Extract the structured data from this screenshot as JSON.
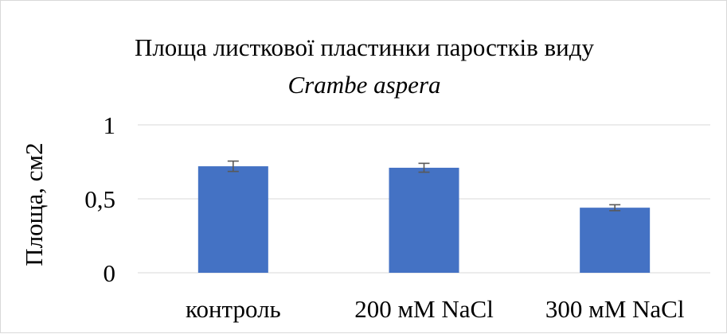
{
  "chart_data": {
    "type": "bar",
    "title": "Площа листкової пластинки паростків виду",
    "subtitle": "Crambe aspera",
    "xlabel": "",
    "ylabel": "Площа, см2",
    "categories": [
      "контроль",
      "200 мМ NaCl",
      "300 мМ NaCl"
    ],
    "values": [
      0.72,
      0.71,
      0.44
    ],
    "errors": [
      0.035,
      0.03,
      0.02
    ],
    "ylim": [
      0,
      1
    ],
    "yticks": [
      0,
      0.5,
      1
    ],
    "ytick_labels": [
      "0",
      "0,5",
      "1"
    ],
    "grid": true,
    "legend": "none",
    "bar_color": "#4472c4",
    "error_color": "#595959",
    "grid_color": "#d9d9d9"
  }
}
